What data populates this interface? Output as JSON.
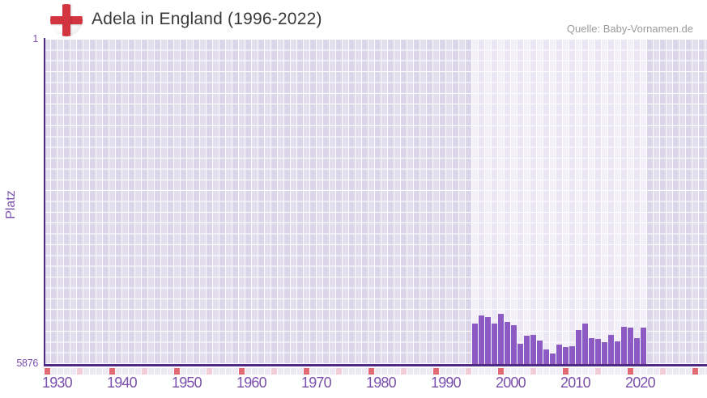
{
  "header": {
    "title": "Adela in England (1996-2022)",
    "source": "Quelle: Baby-Vornamen.de"
  },
  "flag": {
    "icon": "england-flag-icon",
    "cross_color": "#d23440"
  },
  "y_axis": {
    "label": "Platz",
    "top_tick": "1",
    "bottom_tick": "5876"
  },
  "x_axis": {
    "decade_labels": [
      "1930",
      "1940",
      "1950",
      "1960",
      "1970",
      "1980",
      "1990",
      "2000",
      "2010",
      "2020"
    ],
    "start_year": 1930,
    "end_year": 2032,
    "tick_rule": "red square every 10 years, pink square every 5 years"
  },
  "chart_data": {
    "type": "bar",
    "title": "Adela in England (1996-2022)",
    "xlabel": "",
    "ylabel": "Platz",
    "x": [
      1996,
      1997,
      1998,
      1999,
      2000,
      2001,
      2002,
      2003,
      2004,
      2005,
      2006,
      2007,
      2008,
      2009,
      2010,
      2011,
      2012,
      2013,
      2014,
      2015,
      2016,
      2017,
      2018,
      2019,
      2020,
      2021,
      2022
    ],
    "values": [
      5147,
      5001,
      5021,
      5147,
      4963,
      5118,
      5172,
      5505,
      5363,
      5348,
      5450,
      5607,
      5689,
      5519,
      5572,
      5548,
      5255,
      5143,
      5402,
      5426,
      5484,
      5348,
      5460,
      5206,
      5220,
      5402,
      5211
    ],
    "ylim": [
      1,
      5876
    ],
    "y_axis_inverted": true,
    "x_axis_range": [
      1930,
      2032
    ],
    "highlight_range": [
      1996,
      2022
    ],
    "grid": true,
    "legend": false,
    "source": "Quelle: Baby-Vornamen.de"
  },
  "colors": {
    "bar": "#8d5ac4",
    "axis_line": "#4e2a84",
    "axis_text": "#7a4fad",
    "title_text": "#3a3a3a",
    "source_text": "#9b9b9b",
    "bg_col_light": "#e2deee",
    "bg_col_dark": "#dad5e8",
    "band_col_light": "#f3f0fa",
    "band_col_dark": "#ebe6f4",
    "tick_default": "#ece8f4",
    "tick_default_band": "#f2eff9",
    "tick_half_decade": "#f2ccd7",
    "tick_decade": "#e26974"
  }
}
